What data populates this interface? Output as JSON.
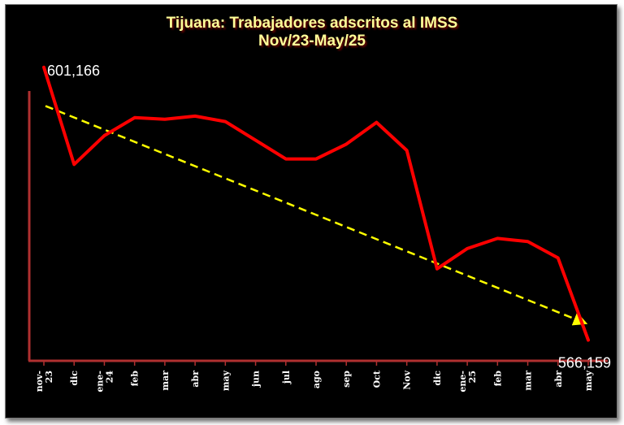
{
  "chart_data": {
    "type": "line",
    "title": "Tijuana: Trabajadores adscritos al IMSS",
    "subtitle": "Nov/23-May/25",
    "categories": [
      "nov-23",
      "dic",
      "ene-24",
      "feb",
      "mar",
      "abr",
      "may",
      "jun",
      "jul",
      "ago",
      "sep",
      "Oct",
      "Nov",
      "dic",
      "ene-25",
      "feb",
      "mar",
      "abr",
      "may"
    ],
    "series": [
      {
        "color": "#ff0000",
        "values": [
          601166,
          588700,
          592400,
          594700,
          594500,
          594900,
          594200,
          591800,
          589400,
          589400,
          591300,
          594100,
          590500,
          575300,
          577900,
          579200,
          578800,
          576700,
          566159
        ]
      }
    ],
    "trendline": {
      "color": "#ffff00",
      "style": "dashed",
      "start": 596200,
      "end": 568350
    },
    "data_labels": [
      {
        "index": 0,
        "text": "601,166"
      },
      {
        "index": 18,
        "text": "566,159"
      }
    ],
    "ylim": [
      563500,
      602500
    ],
    "grid": false,
    "legend": "none",
    "axis_color": "#b03030"
  }
}
